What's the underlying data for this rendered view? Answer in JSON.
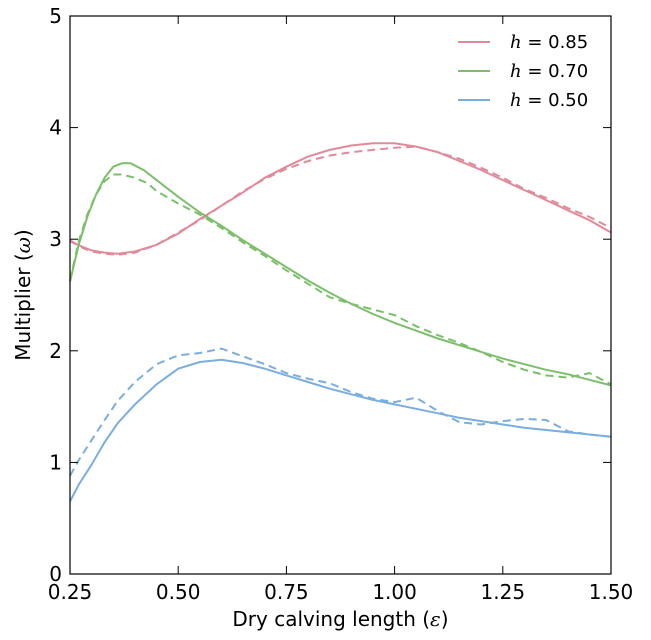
{
  "chart_data": {
    "type": "line",
    "xlabel_text": "Dry calving length (",
    "xlabel_symbol": "ε",
    "xlabel_close": ")",
    "ylabel_text": "Multiplier (",
    "ylabel_symbol": "ω",
    "ylabel_close": ")",
    "xlim": [
      0.25,
      1.5
    ],
    "ylim": [
      0,
      5
    ],
    "xticks": [
      0.25,
      0.5,
      0.75,
      1.0,
      1.25,
      1.5
    ],
    "xtick_labels": [
      "0.25",
      "0.50",
      "0.75",
      "1.00",
      "1.25",
      "1.50"
    ],
    "yticks": [
      0,
      1,
      2,
      3,
      4,
      5
    ],
    "ytick_labels": [
      "0",
      "1",
      "2",
      "3",
      "4",
      "5"
    ],
    "grid": false,
    "legend_position": "top-right",
    "series": [
      {
        "name": "h = 0.85",
        "legend_symbol": "h",
        "legend_value": "= 0.85",
        "color": "#e08a9a",
        "solid": [
          [
            0.25,
            2.98
          ],
          [
            0.28,
            2.93
          ],
          [
            0.3,
            2.9
          ],
          [
            0.33,
            2.88
          ],
          [
            0.36,
            2.87
          ],
          [
            0.4,
            2.89
          ],
          [
            0.45,
            2.95
          ],
          [
            0.5,
            3.05
          ],
          [
            0.55,
            3.18
          ],
          [
            0.6,
            3.3
          ],
          [
            0.65,
            3.42
          ],
          [
            0.7,
            3.55
          ],
          [
            0.75,
            3.65
          ],
          [
            0.8,
            3.74
          ],
          [
            0.85,
            3.8
          ],
          [
            0.9,
            3.84
          ],
          [
            0.95,
            3.86
          ],
          [
            1.0,
            3.86
          ],
          [
            1.05,
            3.83
          ],
          [
            1.1,
            3.78
          ],
          [
            1.15,
            3.7
          ],
          [
            1.2,
            3.62
          ],
          [
            1.25,
            3.53
          ],
          [
            1.3,
            3.44
          ],
          [
            1.35,
            3.35
          ],
          [
            1.4,
            3.26
          ],
          [
            1.45,
            3.17
          ],
          [
            1.5,
            3.06
          ]
        ],
        "dashed": [
          [
            0.25,
            2.99
          ],
          [
            0.28,
            2.92
          ],
          [
            0.3,
            2.89
          ],
          [
            0.33,
            2.87
          ],
          [
            0.36,
            2.86
          ],
          [
            0.4,
            2.88
          ],
          [
            0.45,
            2.95
          ],
          [
            0.5,
            3.06
          ],
          [
            0.55,
            3.17
          ],
          [
            0.6,
            3.3
          ],
          [
            0.65,
            3.43
          ],
          [
            0.7,
            3.54
          ],
          [
            0.75,
            3.63
          ],
          [
            0.8,
            3.7
          ],
          [
            0.85,
            3.75
          ],
          [
            0.9,
            3.78
          ],
          [
            0.95,
            3.8
          ],
          [
            1.0,
            3.82
          ],
          [
            1.05,
            3.83
          ],
          [
            1.1,
            3.78
          ],
          [
            1.15,
            3.72
          ],
          [
            1.2,
            3.64
          ],
          [
            1.25,
            3.55
          ],
          [
            1.3,
            3.45
          ],
          [
            1.35,
            3.37
          ],
          [
            1.4,
            3.28
          ],
          [
            1.45,
            3.2
          ],
          [
            1.5,
            3.1
          ]
        ]
      },
      {
        "name": "h = 0.70",
        "legend_symbol": "h",
        "legend_value": "= 0.70",
        "color": "#7cbf6a",
        "solid": [
          [
            0.25,
            2.62
          ],
          [
            0.27,
            2.95
          ],
          [
            0.29,
            3.2
          ],
          [
            0.31,
            3.4
          ],
          [
            0.33,
            3.55
          ],
          [
            0.35,
            3.65
          ],
          [
            0.37,
            3.68
          ],
          [
            0.39,
            3.68
          ],
          [
            0.42,
            3.62
          ],
          [
            0.45,
            3.53
          ],
          [
            0.5,
            3.38
          ],
          [
            0.55,
            3.24
          ],
          [
            0.6,
            3.12
          ],
          [
            0.65,
            2.99
          ],
          [
            0.7,
            2.87
          ],
          [
            0.75,
            2.75
          ],
          [
            0.8,
            2.63
          ],
          [
            0.85,
            2.52
          ],
          [
            0.9,
            2.42
          ],
          [
            0.95,
            2.33
          ],
          [
            1.0,
            2.25
          ],
          [
            1.05,
            2.18
          ],
          [
            1.1,
            2.11
          ],
          [
            1.15,
            2.05
          ],
          [
            1.2,
            1.99
          ],
          [
            1.25,
            1.93
          ],
          [
            1.3,
            1.88
          ],
          [
            1.35,
            1.83
          ],
          [
            1.4,
            1.79
          ],
          [
            1.45,
            1.74
          ],
          [
            1.5,
            1.69
          ]
        ],
        "dashed": [
          [
            0.25,
            2.63
          ],
          [
            0.27,
            2.98
          ],
          [
            0.29,
            3.22
          ],
          [
            0.31,
            3.4
          ],
          [
            0.33,
            3.52
          ],
          [
            0.35,
            3.58
          ],
          [
            0.37,
            3.58
          ],
          [
            0.4,
            3.55
          ],
          [
            0.43,
            3.5
          ],
          [
            0.45,
            3.43
          ],
          [
            0.5,
            3.32
          ],
          [
            0.55,
            3.22
          ],
          [
            0.6,
            3.1
          ],
          [
            0.65,
            2.97
          ],
          [
            0.7,
            2.85
          ],
          [
            0.75,
            2.72
          ],
          [
            0.8,
            2.6
          ],
          [
            0.85,
            2.48
          ],
          [
            0.9,
            2.42
          ],
          [
            0.95,
            2.37
          ],
          [
            1.0,
            2.32
          ],
          [
            1.05,
            2.22
          ],
          [
            1.1,
            2.14
          ],
          [
            1.15,
            2.07
          ],
          [
            1.2,
            1.99
          ],
          [
            1.25,
            1.9
          ],
          [
            1.3,
            1.83
          ],
          [
            1.35,
            1.78
          ],
          [
            1.4,
            1.76
          ],
          [
            1.45,
            1.8
          ],
          [
            1.5,
            1.7
          ]
        ]
      },
      {
        "name": "h = 0.50",
        "legend_symbol": "h",
        "legend_value": "= 0.50",
        "color": "#7aaedf",
        "solid": [
          [
            0.25,
            0.65
          ],
          [
            0.27,
            0.8
          ],
          [
            0.3,
            0.98
          ],
          [
            0.33,
            1.18
          ],
          [
            0.36,
            1.35
          ],
          [
            0.4,
            1.52
          ],
          [
            0.45,
            1.7
          ],
          [
            0.5,
            1.84
          ],
          [
            0.55,
            1.9
          ],
          [
            0.6,
            1.92
          ],
          [
            0.65,
            1.89
          ],
          [
            0.7,
            1.84
          ],
          [
            0.75,
            1.78
          ],
          [
            0.8,
            1.72
          ],
          [
            0.85,
            1.66
          ],
          [
            0.9,
            1.61
          ],
          [
            0.95,
            1.56
          ],
          [
            1.0,
            1.52
          ],
          [
            1.05,
            1.48
          ],
          [
            1.1,
            1.44
          ],
          [
            1.15,
            1.4
          ],
          [
            1.2,
            1.37
          ],
          [
            1.25,
            1.34
          ],
          [
            1.3,
            1.31
          ],
          [
            1.35,
            1.29
          ],
          [
            1.4,
            1.27
          ],
          [
            1.45,
            1.25
          ],
          [
            1.5,
            1.23
          ]
        ],
        "dashed": [
          [
            0.25,
            0.88
          ],
          [
            0.27,
            1.02
          ],
          [
            0.3,
            1.2
          ],
          [
            0.33,
            1.38
          ],
          [
            0.36,
            1.55
          ],
          [
            0.4,
            1.72
          ],
          [
            0.45,
            1.88
          ],
          [
            0.5,
            1.96
          ],
          [
            0.55,
            1.98
          ],
          [
            0.6,
            2.02
          ],
          [
            0.65,
            1.95
          ],
          [
            0.7,
            1.88
          ],
          [
            0.75,
            1.8
          ],
          [
            0.8,
            1.75
          ],
          [
            0.85,
            1.71
          ],
          [
            0.9,
            1.63
          ],
          [
            0.95,
            1.57
          ],
          [
            1.0,
            1.54
          ],
          [
            1.05,
            1.58
          ],
          [
            1.1,
            1.46
          ],
          [
            1.15,
            1.36
          ],
          [
            1.2,
            1.34
          ],
          [
            1.25,
            1.37
          ],
          [
            1.3,
            1.39
          ],
          [
            1.35,
            1.38
          ],
          [
            1.4,
            1.28
          ],
          [
            1.45,
            1.25
          ],
          [
            1.5,
            1.23
          ]
        ]
      }
    ]
  }
}
